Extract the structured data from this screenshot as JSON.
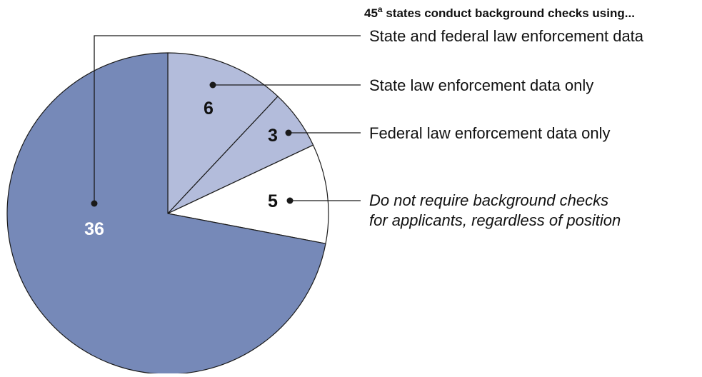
{
  "chart_data": {
    "type": "pie",
    "title": "45",
    "title_superscript": "a",
    "title_suffix": " states conduct background checks using...",
    "slices": [
      {
        "label": "State and federal law enforcement data",
        "value": 36,
        "value_label": "36",
        "color": "#7689b8",
        "label_color": "#ffffff",
        "italic": false
      },
      {
        "label": "State law enforcement data only",
        "value": 6,
        "value_label": "6",
        "color": "#b3bcdb",
        "label_color": "#111111",
        "italic": false
      },
      {
        "label": "Federal law enforcement data only",
        "value": 3,
        "value_label": "3",
        "color": "#b3bcdb",
        "label_color": "#111111",
        "italic": false
      },
      {
        "label": "Do not require background checks for applicants, regardless of position",
        "label_lines": [
          "Do not require background checks",
          "for applicants, regardless of position"
        ],
        "value": 5,
        "value_label": "5",
        "color": "#ffffff",
        "label_color": "#111111",
        "italic": true
      }
    ]
  }
}
